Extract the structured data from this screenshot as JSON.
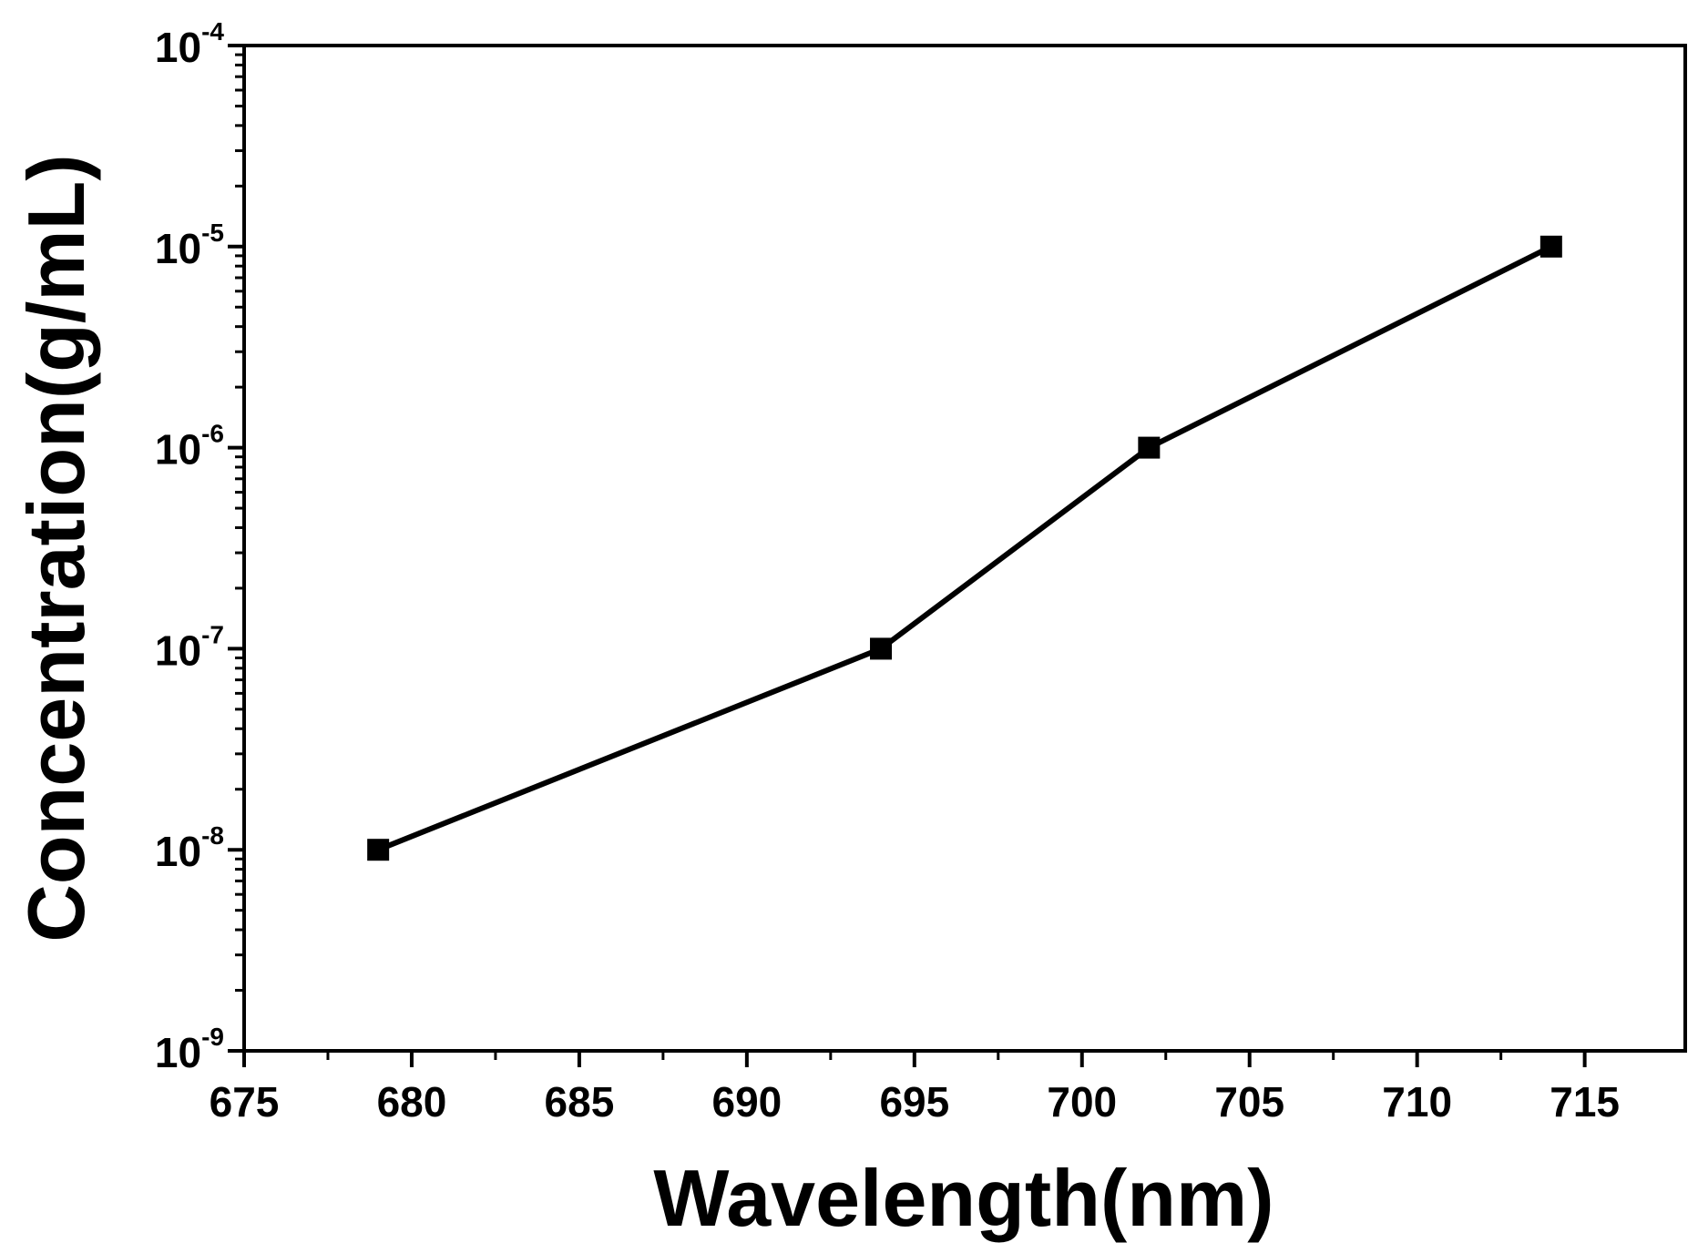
{
  "chart_data": {
    "type": "line",
    "title": "",
    "xlabel": "Wavelength(nm)",
    "ylabel": "Concentration(g/mL)",
    "xlim": [
      675,
      718
    ],
    "ylim": [
      1e-09,
      0.0001
    ],
    "yscale": "log",
    "grid": false,
    "legend": "none",
    "x_ticks": [
      675,
      680,
      685,
      690,
      695,
      700,
      705,
      710,
      715
    ],
    "y_ticks": [
      {
        "base": "10",
        "exp": "-9",
        "value": 1e-09
      },
      {
        "base": "10",
        "exp": "-8",
        "value": 1e-08
      },
      {
        "base": "10",
        "exp": "-7",
        "value": 1e-07
      },
      {
        "base": "10",
        "exp": "-6",
        "value": 1e-06
      },
      {
        "base": "10",
        "exp": "-5",
        "value": 1e-05
      },
      {
        "base": "10",
        "exp": "-4",
        "value": 0.0001
      }
    ],
    "series": [
      {
        "name": "Concentration",
        "marker": "square",
        "color": "#000000",
        "x": [
          679,
          694,
          702,
          714
        ],
        "y": [
          1e-08,
          1e-07,
          1e-06,
          1e-05
        ]
      }
    ]
  }
}
